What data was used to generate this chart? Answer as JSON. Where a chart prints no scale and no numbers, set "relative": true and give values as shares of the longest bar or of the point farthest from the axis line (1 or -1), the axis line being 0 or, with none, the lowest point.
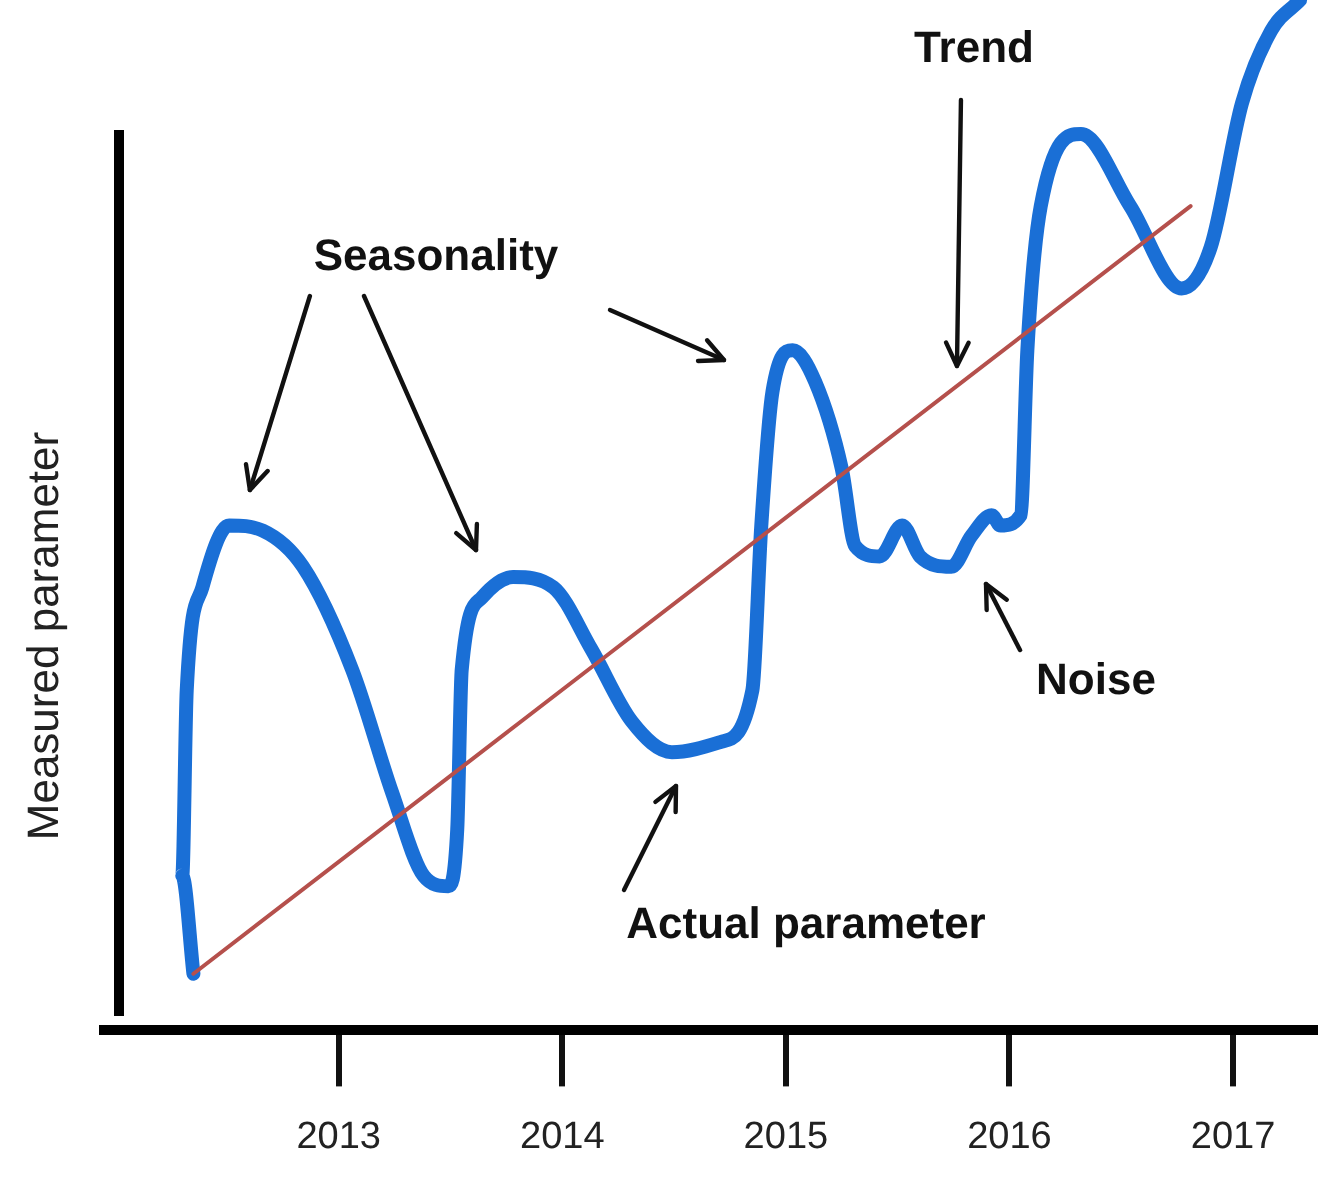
{
  "chart_data": {
    "type": "line",
    "relative": true,
    "ylabel": "Measured parameter",
    "xlim": [
      2011.95,
      2017.38
    ],
    "xticks": [
      2013,
      2014,
      2015,
      2016,
      2017
    ],
    "grid": false,
    "legend": false,
    "marker": "none",
    "annotations": [
      "Seasonality",
      "Trend",
      "Noise",
      "Actual parameter"
    ],
    "series": [
      {
        "color": "#1a6fd6",
        "x": [
          2012.35,
          2012.3,
          2012.32,
          2012.39,
          2012.51,
          2012.66,
          2012.84,
          2013.06,
          2013.24,
          2013.38,
          2013.49,
          2013.53,
          2013.55,
          2013.64,
          2013.78,
          2013.96,
          2014.13,
          2014.31,
          2014.49,
          2014.71,
          2014.85,
          2014.89,
          2014.94,
          2015.03,
          2015.13,
          2015.25,
          2015.31,
          2015.42,
          2015.52,
          2015.6,
          2015.74,
          2015.83,
          2015.92,
          2015.96,
          2016.05,
          2016.08,
          2016.14,
          2016.32,
          2016.54,
          2016.77,
          2016.9,
          2017.04,
          2017.17,
          2017.3
        ],
        "values": [
          0.055,
          0.15,
          0.33,
          0.43,
          0.49,
          0.485,
          0.45,
          0.35,
          0.23,
          0.15,
          0.14,
          0.195,
          0.35,
          0.42,
          0.44,
          0.43,
          0.37,
          0.3,
          0.27,
          0.28,
          0.33,
          0.49,
          0.62,
          0.66,
          0.63,
          0.545,
          0.47,
          0.46,
          0.49,
          0.46,
          0.45,
          0.48,
          0.5,
          0.49,
          0.5,
          0.66,
          0.8,
          0.87,
          0.8,
          0.72,
          0.76,
          0.9,
          0.97,
          1.0
        ]
      },
      {
        "color": "#b5504c",
        "x": [
          2012.35,
          2016.81
        ],
        "values": [
          0.055,
          0.8
        ]
      }
    ]
  }
}
